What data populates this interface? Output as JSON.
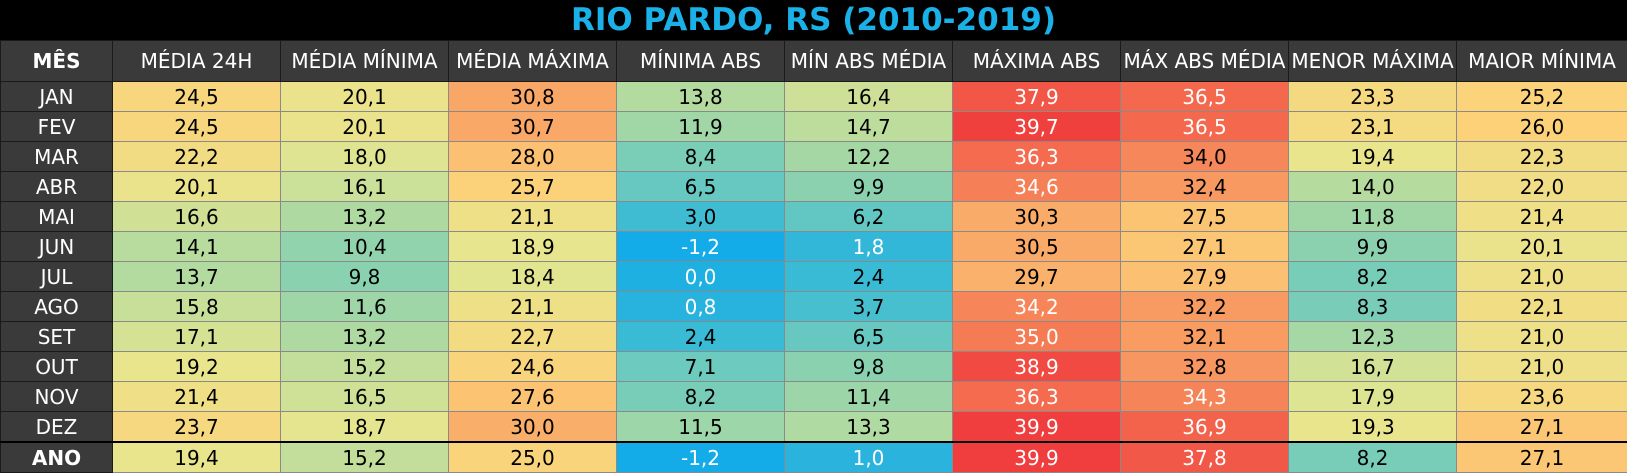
{
  "title": "RIO PARDO, RS (2010-2019)",
  "headers": [
    "MÊS",
    "MÉDIA 24H",
    "MÉDIA MÍNIMA",
    "MÉDIA MÁXIMA",
    "MÍNIMA ABS",
    "MÍN ABS MÉDIA",
    "MÁXIMA ABS",
    "MÁX ABS MÉDIA",
    "MENOR MÁXIMA",
    "MAIOR MÍNIMA"
  ],
  "rows": [
    {
      "month": "JAN",
      "values": [
        "24,5",
        "20,1",
        "30,8",
        "13,8",
        "16,4",
        "37,9",
        "36,5",
        "23,3",
        "25,2"
      ]
    },
    {
      "month": "FEV",
      "values": [
        "24,5",
        "20,1",
        "30,7",
        "11,9",
        "14,7",
        "39,7",
        "36,5",
        "23,1",
        "26,0"
      ]
    },
    {
      "month": "MAR",
      "values": [
        "22,2",
        "18,0",
        "28,0",
        "8,4",
        "12,2",
        "36,3",
        "34,0",
        "19,4",
        "22,3"
      ]
    },
    {
      "month": "ABR",
      "values": [
        "20,1",
        "16,1",
        "25,7",
        "6,5",
        "9,9",
        "34,6",
        "32,4",
        "14,0",
        "22,0"
      ]
    },
    {
      "month": "MAI",
      "values": [
        "16,6",
        "13,2",
        "21,1",
        "3,0",
        "6,2",
        "30,3",
        "27,5",
        "11,8",
        "21,4"
      ]
    },
    {
      "month": "JUN",
      "values": [
        "14,1",
        "10,4",
        "18,9",
        "-1,2",
        "1,8",
        "30,5",
        "27,1",
        "9,9",
        "20,1"
      ]
    },
    {
      "month": "JUL",
      "values": [
        "13,7",
        "9,8",
        "18,4",
        "0,0",
        "2,4",
        "29,7",
        "27,9",
        "8,2",
        "21,0"
      ]
    },
    {
      "month": "AGO",
      "values": [
        "15,8",
        "11,6",
        "21,1",
        "0,8",
        "3,7",
        "34,2",
        "32,2",
        "8,3",
        "22,1"
      ]
    },
    {
      "month": "SET",
      "values": [
        "17,1",
        "13,2",
        "22,7",
        "2,4",
        "6,5",
        "35,0",
        "32,1",
        "12,3",
        "21,0"
      ]
    },
    {
      "month": "OUT",
      "values": [
        "19,2",
        "15,2",
        "24,6",
        "7,1",
        "9,8",
        "38,9",
        "32,8",
        "16,7",
        "21,0"
      ]
    },
    {
      "month": "NOV",
      "values": [
        "21,4",
        "16,5",
        "27,6",
        "8,2",
        "11,4",
        "36,3",
        "34,3",
        "17,9",
        "23,6"
      ]
    },
    {
      "month": "DEZ",
      "values": [
        "23,7",
        "18,7",
        "30,0",
        "11,5",
        "13,3",
        "39,9",
        "36,9",
        "19,3",
        "27,1"
      ]
    }
  ],
  "year_row": {
    "month": "ANO",
    "values": [
      "19,4",
      "15,2",
      "25,0",
      "-1,2",
      "1,0",
      "39,9",
      "37,8",
      "8,2",
      "27,1"
    ]
  },
  "colors": {
    "title": "#1ab0e8",
    "header_bg": "#3a3a3a",
    "scale": [
      "#0aa8ec",
      "#55c4c8",
      "#a2d7a5",
      "#e8e68e",
      "#fcd178",
      "#f7945f",
      "#f03c3c"
    ]
  }
}
